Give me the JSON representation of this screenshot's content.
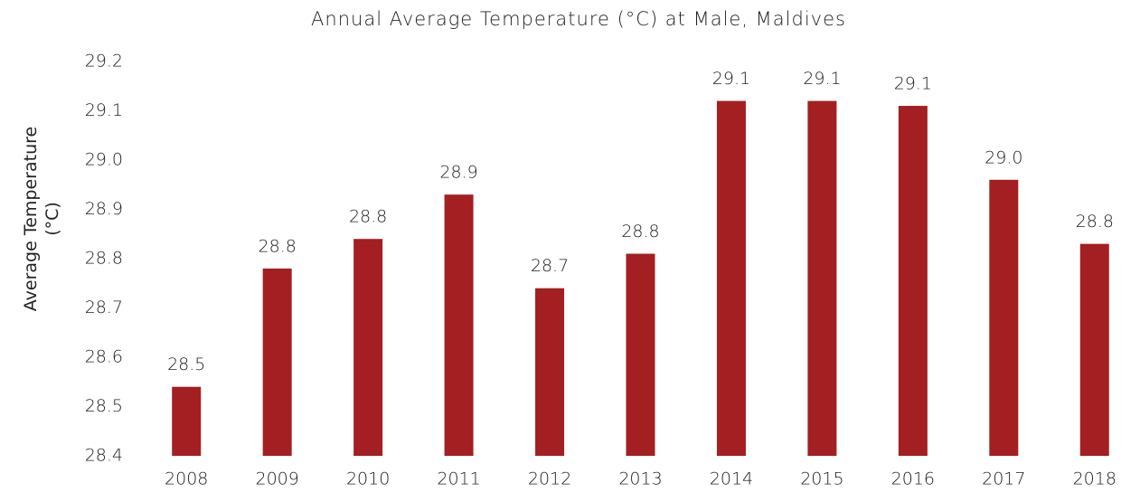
{
  "chart_data": {
    "type": "bar",
    "title": "Annual Average Temperature (°C) at Male, Maldives",
    "y_label": "Average Temperature (°C)",
    "categories": [
      "2008",
      "2009",
      "2010",
      "2011",
      "2012",
      "2013",
      "2014",
      "2015",
      "2016",
      "2017",
      "2018"
    ],
    "values": [
      28.54,
      28.78,
      28.84,
      28.93,
      28.74,
      28.81,
      29.12,
      29.12,
      29.11,
      28.96,
      28.83
    ],
    "value_labels": [
      "28.5",
      "28.8",
      "28.8",
      "28.9",
      "28.7",
      "28.8",
      "29.1",
      "29.1",
      "29.1",
      "29.0",
      "28.8"
    ],
    "color": "#a31f21",
    "ylim": [
      28.4,
      29.2
    ],
    "yticks": [
      28.4,
      28.5,
      28.6,
      28.7,
      28.8,
      28.9,
      {
        "value": 29,
        "label": "29.0"
      },
      29.1,
      29.2
    ],
    "grid": false
  }
}
